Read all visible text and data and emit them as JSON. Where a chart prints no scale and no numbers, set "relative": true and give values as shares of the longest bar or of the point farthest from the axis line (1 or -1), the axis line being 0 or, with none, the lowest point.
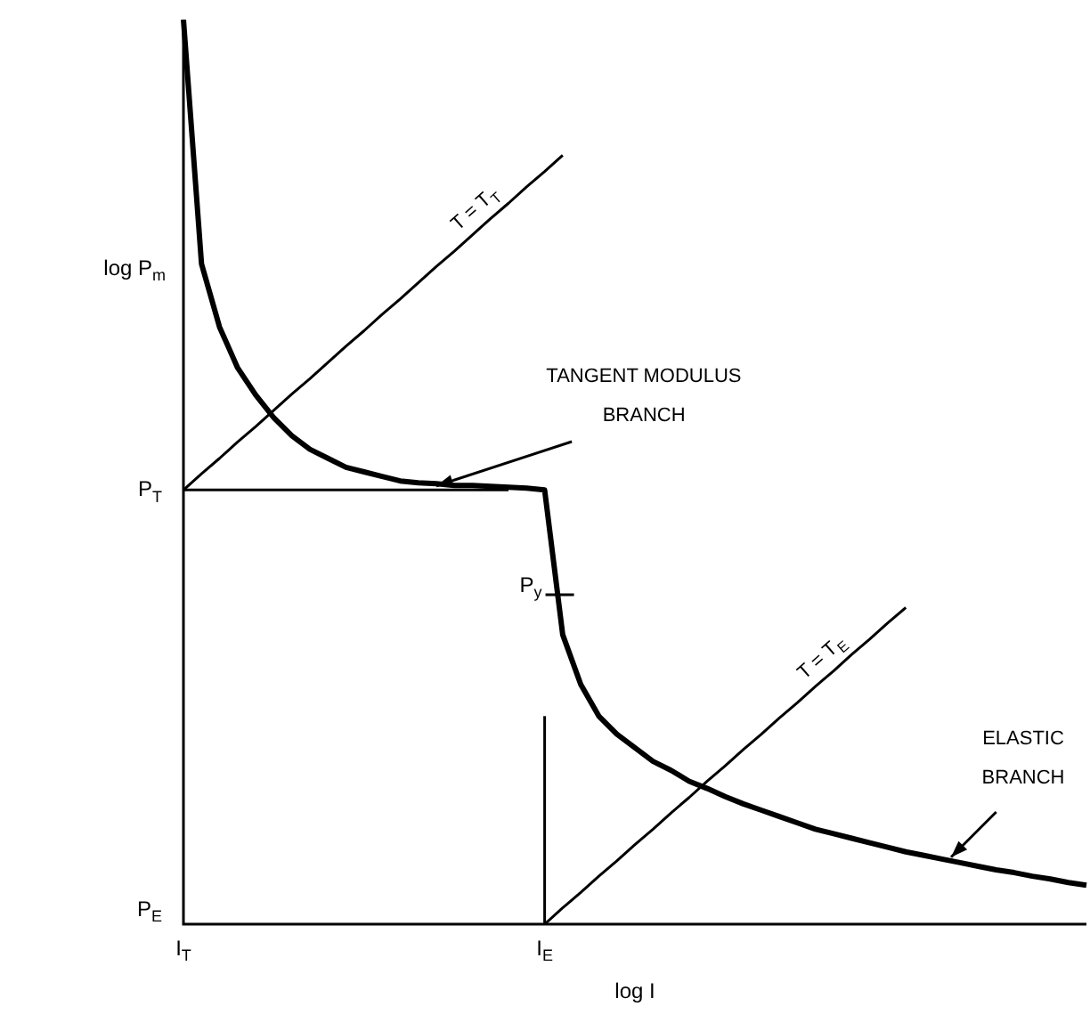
{
  "chart_data": {
    "type": "line",
    "relative": true,
    "xlabel": "log I",
    "ylabel": "log P$_{m}$",
    "marker": "none",
    "categories": [
      "I$_{T}$",
      null,
      null,
      null,
      null,
      null,
      null,
      null,
      null,
      null,
      null,
      null,
      null,
      null,
      null,
      null,
      null,
      null,
      null,
      null,
      "I$_{E}$",
      null,
      null,
      null,
      null,
      null,
      null,
      null,
      null,
      null,
      null,
      null,
      null,
      null,
      null,
      null,
      null,
      null,
      null,
      null,
      null,
      null,
      null,
      null,
      null,
      null,
      null,
      null,
      null,
      null,
      null
    ],
    "series": [
      {
        "type": "line",
        "color": "#000000",
        "values": [
          1.0,
          0.73,
          0.66,
          0.615,
          0.585,
          0.56,
          0.54,
          0.525,
          0.515,
          0.505,
          0.5,
          0.495,
          0.49,
          0.488,
          0.487,
          0.485,
          0.485,
          0.484,
          0.483,
          0.482,
          0.48,
          0.32,
          0.265,
          0.23,
          0.21,
          0.195,
          0.18,
          0.17,
          0.158,
          0.15,
          0.141,
          0.133,
          0.126,
          0.119,
          0.112,
          0.105,
          0.1,
          0.095,
          0.09,
          0.085,
          0.08,
          0.076,
          0.072,
          0.068,
          0.064,
          0.06,
          0.057,
          0.053,
          0.05,
          0.046,
          0.043
        ]
      },
      {
        "type": "line",
        "name": "T = T$_{T}$",
        "color": "#000000",
        "values": [
          0.48,
          0.498,
          0.515,
          0.533,
          0.55,
          0.568,
          0.586,
          0.603,
          0.621,
          0.639,
          0.656,
          0.674,
          0.691,
          0.709,
          0.727,
          0.744,
          0.762,
          0.78,
          0.797,
          0.815,
          0.832,
          0.85,
          null,
          null,
          null,
          null,
          null,
          null,
          null,
          null,
          null,
          null,
          null,
          null,
          null,
          null,
          null,
          null,
          null,
          null,
          null,
          null,
          null,
          null,
          null,
          null,
          null,
          null,
          null,
          null,
          null
        ]
      },
      {
        "type": "line",
        "name": "T = T$_{E}$",
        "color": "#000000",
        "values": [
          null,
          null,
          null,
          null,
          null,
          null,
          null,
          null,
          null,
          null,
          null,
          null,
          null,
          null,
          null,
          null,
          null,
          null,
          null,
          null,
          0,
          0.018,
          0.035,
          0.053,
          0.07,
          0.088,
          0.105,
          0.123,
          0.14,
          0.158,
          0.175,
          0.193,
          0.21,
          0.228,
          0.245,
          0.263,
          0.28,
          0.298,
          0.315,
          0.333,
          0.35,
          null,
          null,
          null,
          null,
          null,
          null,
          null,
          null,
          null,
          null
        ]
      },
      {
        "type": "line",
        "color": "#000000",
        "values": [
          0.48,
          0.48,
          0.48,
          0.48,
          0.48,
          0.48,
          0.48,
          0.48,
          0.48,
          0.48,
          0.48,
          0.48,
          0.48,
          0.48,
          0.48,
          0.48,
          0.48,
          0.48,
          0.48,
          null,
          null,
          null,
          null,
          null,
          null,
          null,
          null,
          null,
          null,
          null,
          null,
          null,
          null,
          null,
          null,
          null,
          null,
          null,
          null,
          null,
          null,
          null,
          null,
          null,
          null,
          null,
          null,
          null,
          null,
          null,
          null
        ]
      }
    ],
    "ref_lines": [
      {
        "axis": "x",
        "value": "I$_{E}$",
        "color": "#000000"
      }
    ],
    "annotations": [
      "P$_{T}$",
      "P$_{E}$",
      "P$_{y}$",
      "TANGENT MODULUS\nBRANCH",
      "ELASTIC\nBRANCH"
    ]
  }
}
